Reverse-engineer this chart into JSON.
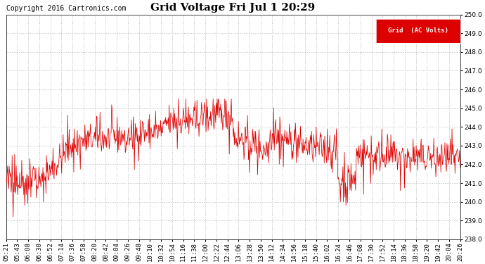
{
  "title": "Grid Voltage Fri Jul 1 20:29",
  "copyright": "Copyright 2016 Cartronics.com",
  "legend_label": "Grid  (AC Volts)",
  "legend_bg": "#dd0000",
  "legend_fg": "#ffffff",
  "line_color": "#dd0000",
  "bg_color": "#ffffff",
  "plot_bg": "#ffffff",
  "grid_color": "#bbbbbb",
  "ylim": [
    238.0,
    250.0
  ],
  "yticks": [
    238.0,
    239.0,
    240.0,
    241.0,
    242.0,
    243.0,
    244.0,
    245.0,
    246.0,
    247.0,
    248.0,
    249.0,
    250.0
  ],
  "xtick_labels": [
    "05:21",
    "05:43",
    "06:08",
    "06:30",
    "06:52",
    "07:14",
    "07:36",
    "07:58",
    "08:20",
    "08:42",
    "09:04",
    "09:26",
    "09:48",
    "10:10",
    "10:32",
    "10:54",
    "11:16",
    "11:38",
    "12:00",
    "12:22",
    "12:44",
    "13:06",
    "13:28",
    "13:50",
    "14:12",
    "14:34",
    "14:56",
    "15:18",
    "15:40",
    "16:02",
    "16:24",
    "16:46",
    "17:08",
    "17:30",
    "17:52",
    "18:14",
    "18:36",
    "18:58",
    "19:20",
    "19:42",
    "20:04",
    "20:26"
  ],
  "title_fontsize": 11,
  "tick_fontsize": 6.5,
  "copyright_fontsize": 7
}
